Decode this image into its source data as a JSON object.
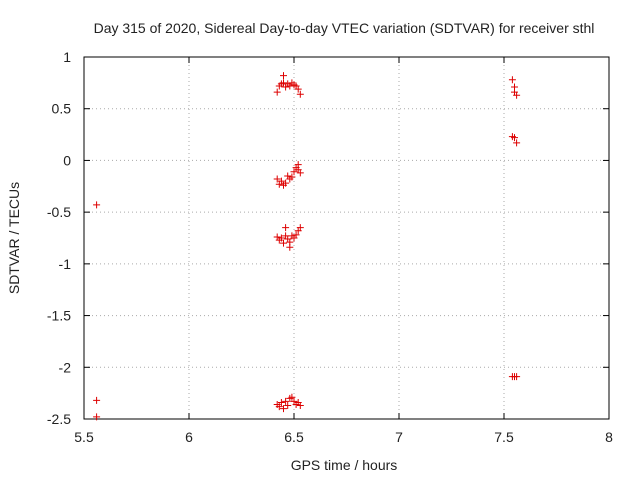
{
  "chart_data": {
    "type": "scatter",
    "title": "Day 315 of 2020, Sidereal Day-to-day VTEC variation (SDTVAR) for receiver sthl",
    "xlabel": "GPS time / hours",
    "ylabel": "SDTVAR / TECUs",
    "xlim": [
      5.5,
      8
    ],
    "ylim": [
      -2.5,
      1
    ],
    "xticks": [
      5.5,
      6,
      6.5,
      7,
      7.5,
      8
    ],
    "xtick_labels": [
      "5.5",
      "6",
      "6.5",
      "7",
      "7.5",
      "8"
    ],
    "yticks": [
      -2.5,
      -2,
      -1.5,
      -1,
      -0.5,
      0,
      0.5,
      1
    ],
    "ytick_labels": [
      "-2.5",
      "-2",
      "-1.5",
      "-1",
      "-0.5",
      "0",
      "0.5",
      "1"
    ],
    "grid": true,
    "marker": "+",
    "color": "#dd0000",
    "points": [
      [
        5.56,
        -0.43
      ],
      [
        5.56,
        -2.32
      ],
      [
        5.56,
        -2.48
      ],
      [
        6.42,
        0.66
      ],
      [
        6.43,
        0.72
      ],
      [
        6.44,
        0.74
      ],
      [
        6.45,
        0.82
      ],
      [
        6.45,
        0.75
      ],
      [
        6.46,
        0.71
      ],
      [
        6.47,
        0.74
      ],
      [
        6.48,
        0.72
      ],
      [
        6.49,
        0.75
      ],
      [
        6.5,
        0.73
      ],
      [
        6.51,
        0.72
      ],
      [
        6.52,
        0.69
      ],
      [
        6.53,
        0.64
      ],
      [
        6.42,
        -0.18
      ],
      [
        6.43,
        -0.23
      ],
      [
        6.44,
        -0.2
      ],
      [
        6.45,
        -0.24
      ],
      [
        6.46,
        -0.22
      ],
      [
        6.47,
        -0.15
      ],
      [
        6.48,
        -0.18
      ],
      [
        6.49,
        -0.16
      ],
      [
        6.5,
        -0.11
      ],
      [
        6.51,
        -0.07
      ],
      [
        6.52,
        -0.04
      ],
      [
        6.52,
        -0.09
      ],
      [
        6.53,
        -0.12
      ],
      [
        6.42,
        -0.74
      ],
      [
        6.43,
        -0.77
      ],
      [
        6.44,
        -0.75
      ],
      [
        6.45,
        -0.8
      ],
      [
        6.46,
        -0.65
      ],
      [
        6.46,
        -0.73
      ],
      [
        6.47,
        -0.76
      ],
      [
        6.48,
        -0.79
      ],
      [
        6.48,
        -0.84
      ],
      [
        6.49,
        -0.73
      ],
      [
        6.5,
        -0.75
      ],
      [
        6.51,
        -0.72
      ],
      [
        6.52,
        -0.68
      ],
      [
        6.53,
        -0.65
      ],
      [
        6.42,
        -2.36
      ],
      [
        6.43,
        -2.38
      ],
      [
        6.44,
        -2.34
      ],
      [
        6.45,
        -2.4
      ],
      [
        6.46,
        -2.33
      ],
      [
        6.47,
        -2.37
      ],
      [
        6.48,
        -2.3
      ],
      [
        6.49,
        -2.29
      ],
      [
        6.5,
        -2.33
      ],
      [
        6.51,
        -2.36
      ],
      [
        6.52,
        -2.34
      ],
      [
        6.53,
        -2.37
      ],
      [
        7.54,
        0.78
      ],
      [
        7.55,
        0.71
      ],
      [
        7.55,
        0.66
      ],
      [
        7.56,
        0.63
      ],
      [
        7.54,
        0.23
      ],
      [
        7.55,
        0.22
      ],
      [
        7.56,
        0.17
      ],
      [
        7.54,
        -2.09
      ],
      [
        7.55,
        -2.09
      ],
      [
        7.56,
        -2.09
      ]
    ]
  }
}
